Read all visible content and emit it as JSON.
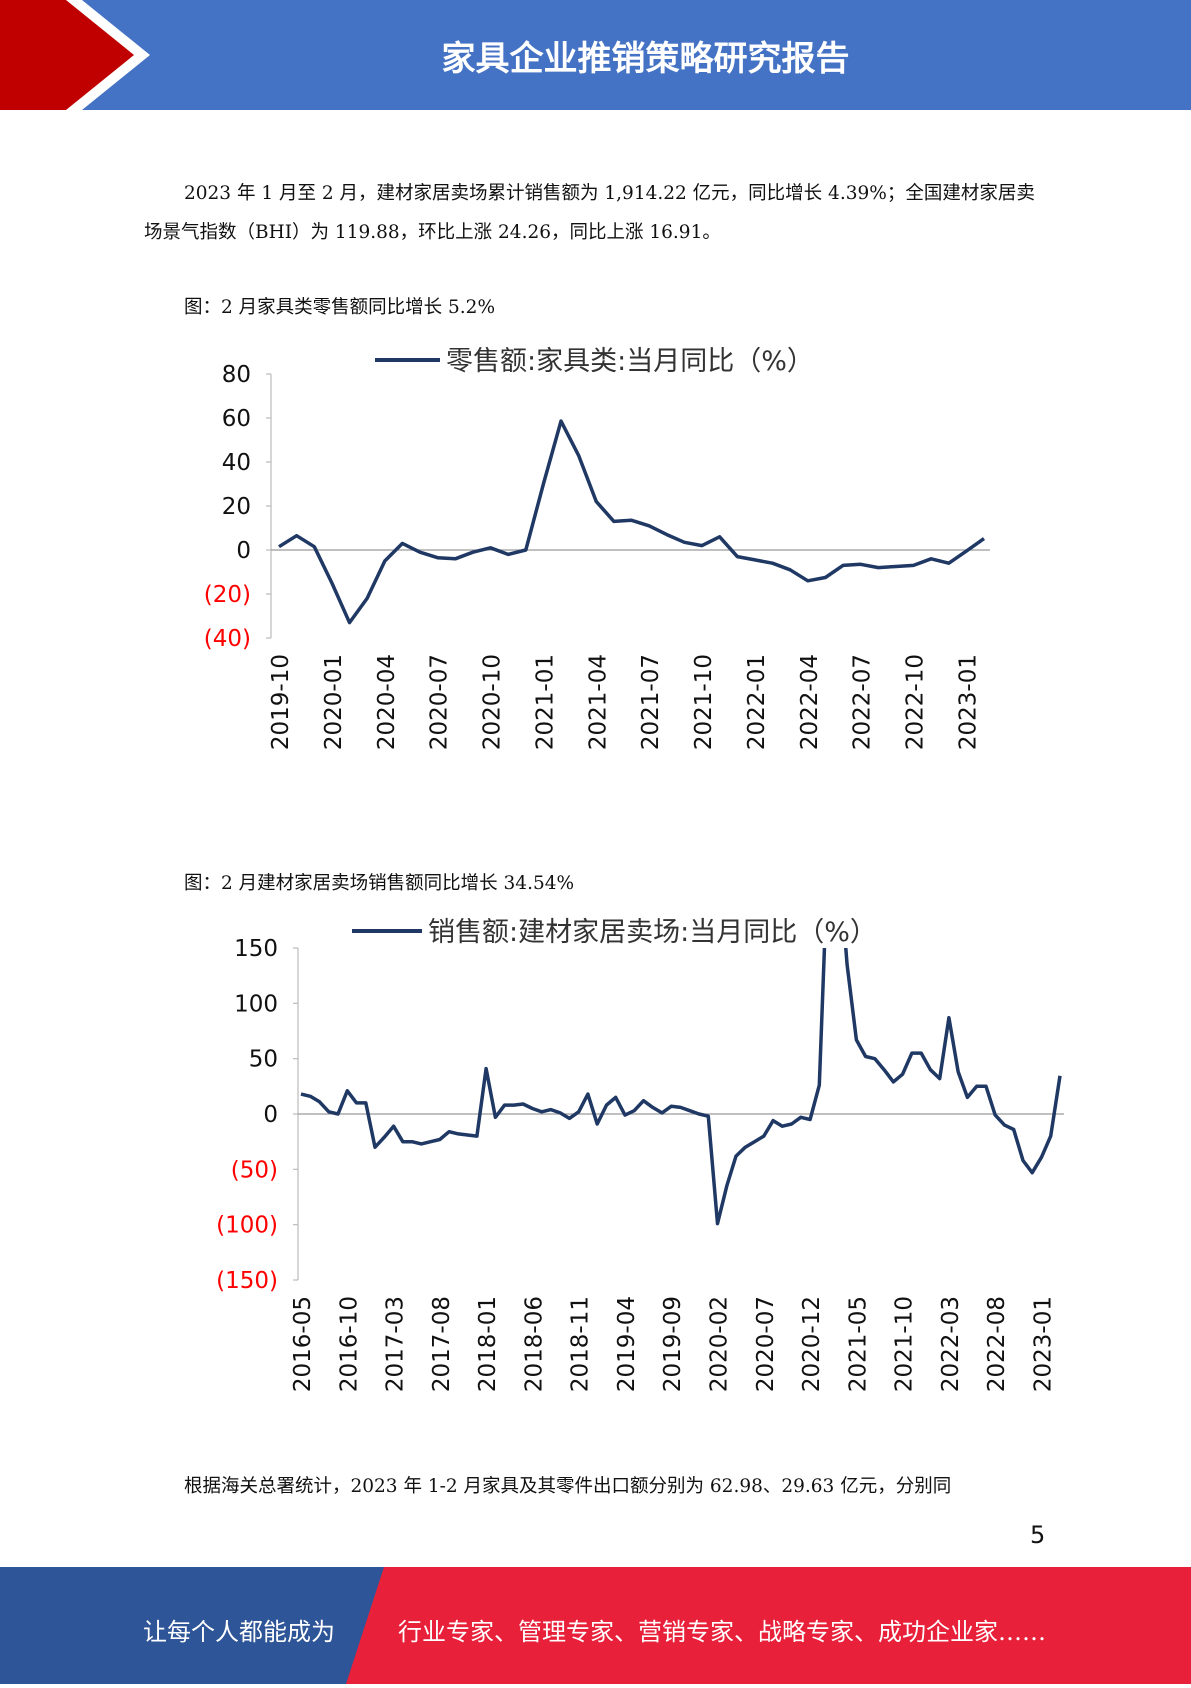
{
  "header": {
    "title": "家具企业推销策略研究报告"
  },
  "paragraph1": "2023 年 1 月至 2 月，建材家居卖场累计销售额为 1,914.22 亿元，同比增长 4.39%；全国建材家居卖场景气指数（BHI）为 119.88，环比上涨 24.26，同比上涨 16.91。",
  "caption1": "图：2 月家具类零售额同比增长 5.2%",
  "caption2": "图：2 月建材家居卖场销售额同比增长 34.54%",
  "paragraph2": "根据海关总署统计，2023 年 1-2 月家具及其零件出口额分别为 62.98、29.63 亿元，分别同",
  "page_number": "5",
  "footer": {
    "left_text": "让每个人都能成为",
    "right_text": "行业专家、管理专家、营销专家、战略专家、成功企业家……"
  },
  "colors": {
    "header_blue": "#4472C4",
    "header_red": "#C00000",
    "footer_blue": "#2E5597",
    "footer_red": "#E8203A",
    "line": "#1F3864",
    "negative_tick": "#FF0000"
  },
  "chart_data": [
    {
      "type": "line",
      "legend": "零售额:家具类:当月同比（%）",
      "legend_position": "top",
      "ylim": [
        -40,
        80
      ],
      "yticks": [
        80,
        60,
        40,
        20,
        0,
        -20,
        -40
      ],
      "ytick_labels": [
        "80",
        "60",
        "40",
        "20",
        "0",
        "(20)",
        "(40)"
      ],
      "xtick_labels": [
        "2019-10",
        "2020-01",
        "2020-04",
        "2020-07",
        "2020-10",
        "2021-01",
        "2021-04",
        "2021-07",
        "2021-10",
        "2022-01",
        "2022-04",
        "2022-07",
        "2022-10",
        "2023-01"
      ],
      "x_start": "2019-10",
      "values": [
        1.5,
        6.5,
        1.5,
        -15,
        -33,
        -22,
        -5,
        3,
        -1,
        -3.5,
        -4,
        -1,
        1,
        -2,
        0,
        30,
        58.6,
        43,
        22,
        13,
        13.5,
        11,
        7,
        3.5,
        2,
        6,
        -3,
        -4.5,
        -6,
        -9,
        -14,
        -12.5,
        -7,
        -6.5,
        -8,
        -7.5,
        -7,
        -4,
        -6,
        -0.5,
        5.2
      ]
    },
    {
      "type": "line",
      "legend": "销售额:建材家居卖场:当月同比（%）",
      "legend_position": "top",
      "ylim": [
        -150,
        150
      ],
      "yticks": [
        150,
        100,
        50,
        0,
        -50,
        -100,
        -150
      ],
      "ytick_labels": [
        "150",
        "100",
        "50",
        "0",
        "(50)",
        "(100)",
        "(150)"
      ],
      "xtick_labels": [
        "2016-05",
        "2016-10",
        "2017-03",
        "2017-08",
        "2018-01",
        "2018-06",
        "2018-11",
        "2019-04",
        "2019-09",
        "2020-02",
        "2020-07",
        "2020-12",
        "2021-05",
        "2021-10",
        "2022-03",
        "2022-08",
        "2023-01"
      ],
      "x_start": "2016-05",
      "clipped_at_top": true,
      "values": [
        18,
        16,
        11,
        2,
        0,
        21,
        10,
        10,
        -30,
        -21,
        -11,
        -25,
        -25,
        -27,
        -25,
        -23,
        -16,
        -18,
        -19,
        -20,
        41,
        -3,
        8,
        8,
        9,
        5,
        2,
        4,
        1,
        -4,
        2,
        18,
        -9,
        8,
        15,
        -1,
        3,
        12,
        6,
        1,
        7,
        6,
        3,
        0,
        -2,
        -99,
        -65,
        -38,
        -30,
        -25,
        -20,
        -6,
        -11,
        -9,
        -3,
        -5,
        26,
        250,
        240,
        135,
        67,
        52,
        50,
        40,
        29,
        36,
        55,
        55,
        40,
        32,
        87,
        38,
        15,
        25,
        25,
        -1,
        -10,
        -14,
        -42,
        -53,
        -39,
        -20,
        34.54
      ]
    }
  ]
}
